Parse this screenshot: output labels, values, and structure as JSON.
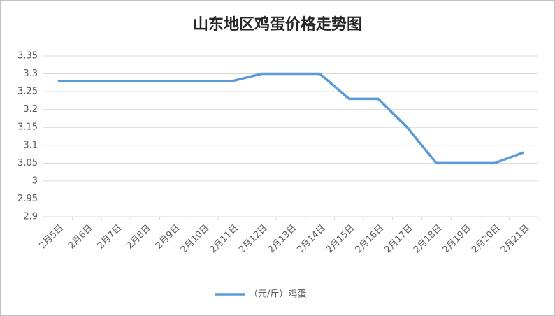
{
  "chart_data": {
    "type": "line",
    "title": "山东地区鸡蛋价格走势图",
    "categories": [
      "2月5日",
      "2月6日",
      "2月7日",
      "2月8日",
      "2月9日",
      "2月10日",
      "2月11日",
      "2月12日",
      "2月13日",
      "2月14日",
      "2月15日",
      "2月16日",
      "2月17日",
      "2月18日",
      "2月19日",
      "2月20日",
      "2月21日"
    ],
    "series": [
      {
        "name": "（元/斤）鸡蛋",
        "color": "#5b9bd5",
        "values": [
          3.28,
          3.28,
          3.28,
          3.28,
          3.28,
          3.28,
          3.28,
          3.3,
          3.3,
          3.3,
          3.23,
          3.23,
          3.15,
          3.05,
          3.05,
          3.05,
          3.08
        ]
      }
    ],
    "ylim": [
      2.9,
      3.35
    ],
    "yticks": [
      2.9,
      2.95,
      3,
      3.05,
      3.1,
      3.15,
      3.2,
      3.25,
      3.3,
      3.35
    ],
    "grid": true,
    "legend": "bottom"
  }
}
